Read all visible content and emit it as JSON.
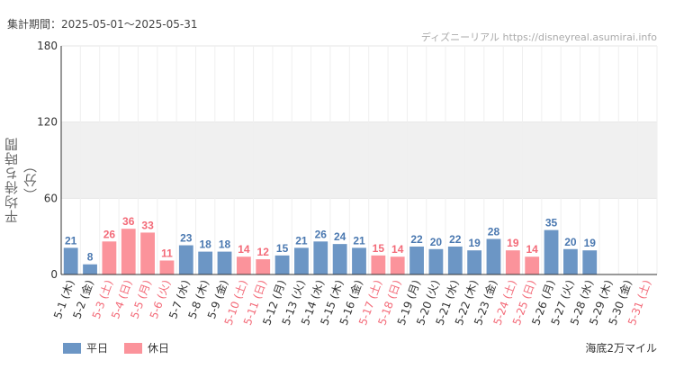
{
  "period_text": "集計期間：2025-05-01～2025-05-31",
  "source_text": "ディズニーリアル https://disneyreal.asumirai.info",
  "attraction_name": "海底2万マイル",
  "legend": [
    {
      "label": "平日",
      "color": "#6c96c5"
    },
    {
      "label": "休日",
      "color": "#fb939b"
    }
  ],
  "colors": {
    "weekday": "#6c96c5",
    "holiday": "#fb939b",
    "weekday_text": "#4a78b0",
    "holiday_text": "#f36a78",
    "band": "#f0f0f0",
    "grid": "#e6e6e6"
  },
  "chart_data": {
    "type": "bar",
    "title": "",
    "xlabel": "",
    "ylabel": "平均待ち時間（分）",
    "ylim": [
      0,
      180
    ],
    "yticks": [
      0,
      60,
      120,
      180
    ],
    "shaded_band": [
      60,
      120
    ],
    "categories": [
      "5-1 (木)",
      "5-2 (金)",
      "5-3 (土)",
      "5-4 (日)",
      "5-5 (月)",
      "5-6 (火)",
      "5-7 (水)",
      "5-8 (木)",
      "5-9 (金)",
      "5-10 (土)",
      "5-11 (日)",
      "5-12 (月)",
      "5-13 (火)",
      "5-14 (水)",
      "5-15 (木)",
      "5-16 (金)",
      "5-17 (土)",
      "5-18 (日)",
      "5-19 (月)",
      "5-20 (火)",
      "5-21 (水)",
      "5-22 (木)",
      "5-23 (金)",
      "5-24 (土)",
      "5-25 (日)",
      "5-26 (月)",
      "5-27 (火)",
      "5-28 (水)",
      "5-29 (木)",
      "5-30 (金)",
      "5-31 (土)"
    ],
    "values": [
      21,
      8,
      26,
      36,
      33,
      11,
      23,
      18,
      18,
      14,
      12,
      15,
      21,
      26,
      24,
      21,
      15,
      14,
      22,
      20,
      22,
      19,
      28,
      19,
      14,
      35,
      20,
      19,
      null,
      null,
      null
    ],
    "holiday": [
      false,
      false,
      true,
      true,
      true,
      true,
      false,
      false,
      false,
      true,
      true,
      false,
      false,
      false,
      false,
      false,
      true,
      true,
      false,
      false,
      false,
      false,
      false,
      true,
      true,
      false,
      false,
      false,
      false,
      false,
      true
    ],
    "series": [
      {
        "name": "平日"
      },
      {
        "name": "休日"
      }
    ]
  }
}
